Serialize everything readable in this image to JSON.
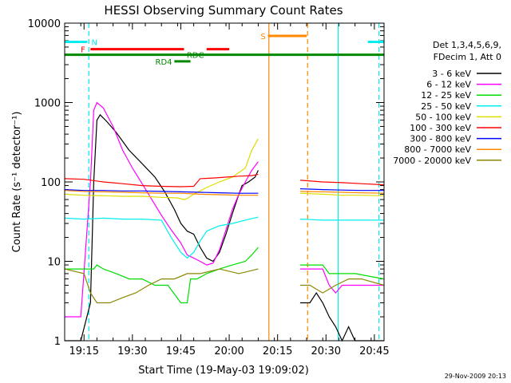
{
  "chart_data": {
    "type": "line",
    "title": "HESSI Observing Summary Count Rates",
    "xlabel": "Start Time (19-May-03 19:09:02)",
    "ylabel": "Count Rate (s⁻¹ detector⁻¹)",
    "x_unit": "minutes after 19:09:02 UTC",
    "xlim": [
      0,
      99
    ],
    "ylim": [
      1,
      10000
    ],
    "yscale": "log",
    "x_ticks": [
      {
        "value": 6,
        "label": "19:15"
      },
      {
        "value": 21,
        "label": "19:30"
      },
      {
        "value": 36,
        "label": "19:45"
      },
      {
        "value": 51,
        "label": "20:00"
      },
      {
        "value": 66,
        "label": "20:15"
      },
      {
        "value": 81,
        "label": "20:30"
      },
      {
        "value": 96,
        "label": "20:45"
      }
    ],
    "y_ticks": [
      {
        "value": 1,
        "label": "1"
      },
      {
        "value": 10,
        "label": "10"
      },
      {
        "value": 100,
        "label": "100"
      },
      {
        "value": 1000,
        "label": "1000"
      },
      {
        "value": 10000,
        "label": "10000"
      }
    ],
    "legend_header": [
      "Det 1,3,4,5,6,9,",
      "FDecim 1, Att 0"
    ],
    "legend_position": "right",
    "timestamp": "29-Nov-2009 20:13",
    "series": [
      {
        "name": "3 - 6 keV",
        "color": "#000000",
        "segments": [
          [
            [
              0,
              1
            ],
            [
              5,
              1
            ],
            [
              8,
              3
            ],
            [
              9,
              100
            ],
            [
              10,
              600
            ],
            [
              11,
              700
            ],
            [
              13,
              580
            ],
            [
              16,
              420
            ],
            [
              20,
              250
            ],
            [
              24,
              170
            ],
            [
              28,
              115
            ],
            [
              31,
              75
            ],
            [
              34,
              45
            ],
            [
              36,
              30
            ],
            [
              38,
              24
            ],
            [
              40,
              22
            ],
            [
              42,
              15
            ],
            [
              44,
              11
            ],
            [
              46,
              10
            ],
            [
              48,
              13
            ],
            [
              50,
              22
            ],
            [
              52,
              40
            ],
            [
              54,
              70
            ],
            [
              55,
              90
            ],
            [
              57,
              100
            ],
            [
              59,
              115
            ],
            [
              60,
              140
            ]
          ],
          [
            [
              73,
              3
            ],
            [
              76,
              3
            ],
            [
              78,
              4
            ],
            [
              80,
              3
            ],
            [
              82,
              2
            ],
            [
              84,
              1.5
            ],
            [
              86,
              1
            ],
            [
              88,
              1.5
            ],
            [
              90,
              1
            ],
            [
              99,
              1
            ]
          ]
        ]
      },
      {
        "name": "6 - 12 keV",
        "color": "#ff00ff",
        "segments": [
          [
            [
              0,
              2
            ],
            [
              5,
              2
            ],
            [
              8,
              100
            ],
            [
              9,
              800
            ],
            [
              10,
              1000
            ],
            [
              12,
              850
            ],
            [
              15,
              500
            ],
            [
              18,
              250
            ],
            [
              21,
              150
            ],
            [
              24,
              95
            ],
            [
              27,
              60
            ],
            [
              30,
              38
            ],
            [
              33,
              25
            ],
            [
              36,
              17
            ],
            [
              38,
              12
            ],
            [
              40,
              11
            ],
            [
              42,
              10
            ],
            [
              44,
              9
            ],
            [
              46,
              9.5
            ],
            [
              48,
              14
            ],
            [
              50,
              25
            ],
            [
              52,
              45
            ],
            [
              54,
              70
            ],
            [
              56,
              100
            ],
            [
              58,
              140
            ],
            [
              60,
              180
            ]
          ],
          [
            [
              73,
              8
            ],
            [
              80,
              8
            ],
            [
              82,
              5
            ],
            [
              84,
              4
            ],
            [
              86,
              5
            ],
            [
              88,
              5
            ],
            [
              99,
              5
            ]
          ]
        ]
      },
      {
        "name": "12 - 25 keV",
        "color": "#00dd00",
        "segments": [
          [
            [
              0,
              8
            ],
            [
              9,
              8
            ],
            [
              10,
              9
            ],
            [
              12,
              8
            ],
            [
              16,
              7
            ],
            [
              20,
              6
            ],
            [
              24,
              6
            ],
            [
              28,
              5
            ],
            [
              32,
              5
            ],
            [
              36,
              3
            ],
            [
              38,
              3
            ],
            [
              39,
              6
            ],
            [
              41,
              6
            ],
            [
              44,
              7
            ],
            [
              48,
              8
            ],
            [
              52,
              9
            ],
            [
              56,
              10
            ],
            [
              58,
              12
            ],
            [
              60,
              15
            ]
          ],
          [
            [
              73,
              9
            ],
            [
              80,
              9
            ],
            [
              82,
              7
            ],
            [
              86,
              7
            ],
            [
              90,
              7
            ],
            [
              99,
              6
            ]
          ]
        ]
      },
      {
        "name": "25 - 50 keV",
        "color": "#00eeee",
        "segments": [
          [
            [
              0,
              35
            ],
            [
              6,
              34
            ],
            [
              12,
              35
            ],
            [
              18,
              34
            ],
            [
              24,
              34
            ],
            [
              30,
              33
            ],
            [
              33,
              20
            ],
            [
              36,
              13
            ],
            [
              38,
              11
            ],
            [
              40,
              13
            ],
            [
              42,
              18
            ],
            [
              44,
              24
            ],
            [
              46,
              26
            ],
            [
              48,
              28
            ],
            [
              52,
              30
            ],
            [
              56,
              33
            ],
            [
              60,
              36
            ]
          ],
          [
            [
              73,
              34
            ],
            [
              80,
              33
            ],
            [
              86,
              33
            ],
            [
              92,
              33
            ],
            [
              99,
              33
            ]
          ]
        ]
      },
      {
        "name": "50 - 100 keV",
        "color": "#dddd00",
        "segments": [
          [
            [
              0,
              70
            ],
            [
              6,
              68
            ],
            [
              12,
              67
            ],
            [
              18,
              66
            ],
            [
              24,
              66
            ],
            [
              30,
              64
            ],
            [
              35,
              63
            ],
            [
              37,
              60
            ],
            [
              38,
              62
            ],
            [
              40,
              70
            ],
            [
              44,
              85
            ],
            [
              48,
              100
            ],
            [
              52,
              115
            ],
            [
              56,
              150
            ],
            [
              58,
              250
            ],
            [
              60,
              350
            ]
          ],
          [
            [
              73,
              72
            ],
            [
              80,
              70
            ],
            [
              86,
              68
            ],
            [
              92,
              68
            ],
            [
              99,
              67
            ]
          ]
        ]
      },
      {
        "name": "100 - 300 keV",
        "color": "#ff0000",
        "segments": [
          [
            [
              0,
              110
            ],
            [
              6,
              108
            ],
            [
              12,
              100
            ],
            [
              18,
              95
            ],
            [
              24,
              90
            ],
            [
              30,
              88
            ],
            [
              36,
              87
            ],
            [
              40,
              88
            ],
            [
              42,
              110
            ],
            [
              46,
              112
            ],
            [
              50,
              115
            ],
            [
              54,
              118
            ],
            [
              58,
              120
            ],
            [
              60,
              125
            ]
          ],
          [
            [
              73,
              105
            ],
            [
              80,
              100
            ],
            [
              86,
              98
            ],
            [
              92,
              95
            ],
            [
              99,
              92
            ]
          ]
        ]
      },
      {
        "name": "300 - 800 keV",
        "color": "#0000ff",
        "segments": [
          [
            [
              0,
              80
            ],
            [
              6,
              78
            ],
            [
              12,
              78
            ],
            [
              18,
              77
            ],
            [
              24,
              77
            ],
            [
              30,
              76
            ],
            [
              36,
              75
            ],
            [
              42,
              74
            ],
            [
              48,
              73
            ],
            [
              54,
              72
            ],
            [
              60,
              72
            ]
          ],
          [
            [
              73,
              82
            ],
            [
              80,
              80
            ],
            [
              86,
              79
            ],
            [
              92,
              78
            ],
            [
              99,
              78
            ]
          ]
        ]
      },
      {
        "name": "800 - 7000 keV",
        "color": "#ff8800",
        "segments": [
          [
            [
              0,
              78
            ],
            [
              6,
              76
            ],
            [
              12,
              75
            ],
            [
              18,
              74
            ],
            [
              24,
              73
            ],
            [
              30,
              72
            ],
            [
              36,
              72
            ],
            [
              42,
              70
            ],
            [
              48,
              69
            ],
            [
              54,
              68
            ],
            [
              60,
              68
            ]
          ],
          [
            [
              73,
              76
            ],
            [
              80,
              75
            ],
            [
              86,
              74
            ],
            [
              92,
              73
            ],
            [
              99,
              72
            ]
          ]
        ]
      },
      {
        "name": "7000 - 20000 keV",
        "color": "#888800",
        "segments": [
          [
            [
              0,
              8
            ],
            [
              6,
              7
            ],
            [
              8,
              4
            ],
            [
              10,
              3
            ],
            [
              14,
              3
            ],
            [
              18,
              3.5
            ],
            [
              22,
              4
            ],
            [
              26,
              5
            ],
            [
              30,
              6
            ],
            [
              34,
              6
            ],
            [
              38,
              7
            ],
            [
              42,
              7
            ],
            [
              48,
              8
            ],
            [
              54,
              7
            ],
            [
              60,
              8
            ]
          ],
          [
            [
              73,
              5
            ],
            [
              76,
              5
            ],
            [
              80,
              4
            ],
            [
              84,
              5
            ],
            [
              88,
              6
            ],
            [
              92,
              6
            ],
            [
              99,
              5
            ]
          ]
        ]
      }
    ],
    "state_bars": [
      {
        "label": "N",
        "color": "#00eeee",
        "y": 5800,
        "segments": [
          [
            0,
            7
          ],
          [
            94,
            99
          ]
        ],
        "label_x": 8.3,
        "label_anchor": "start"
      },
      {
        "label": "F",
        "color": "#ff0000",
        "y": 4700,
        "segments": [
          [
            8,
            37
          ],
          [
            44,
            51
          ]
        ],
        "label_x": 6.4,
        "label_anchor": "end"
      },
      {
        "label": "S",
        "color": "#ff8800",
        "y": 6900,
        "segments": [
          [
            63,
            75
          ]
        ],
        "label_x": 62.3,
        "label_anchor": "end"
      },
      {
        "label": "RDC",
        "color": "#008800",
        "y": 4000,
        "segments": [
          [
            0,
            99
          ]
        ],
        "label_x": 40.5,
        "label_anchor": "middle"
      },
      {
        "label": "RD4",
        "color": "#008800",
        "y": 3300,
        "segments": [
          [
            34,
            39
          ]
        ],
        "label_x": 33.3,
        "label_anchor": "end"
      }
    ],
    "vlines": [
      {
        "x": 7.5,
        "color": "#00eeee",
        "dash": true
      },
      {
        "x": 63.3,
        "color": "#ff8800",
        "dash": false
      },
      {
        "x": 75.3,
        "color": "#ff8800",
        "dash": true
      },
      {
        "x": 84.8,
        "color": "#00eeee",
        "dash": false
      },
      {
        "x": 97.4,
        "color": "#00eeee",
        "dash": true
      }
    ]
  }
}
